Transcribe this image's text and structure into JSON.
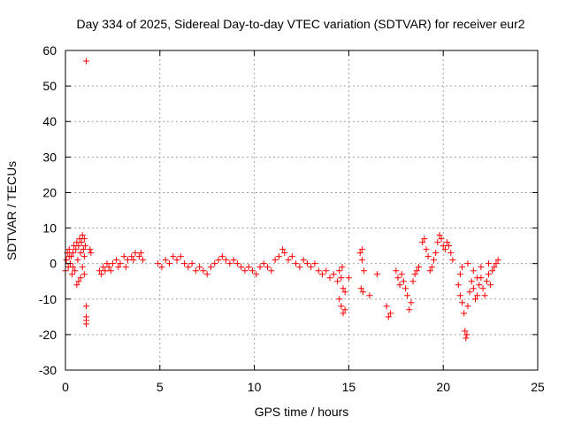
{
  "chart_data": {
    "type": "scatter",
    "title": "Day 334 of 2025, Sidereal Day-to-day VTEC variation (SDTVAR) for receiver eur2",
    "xlabel": "GPS time / hours",
    "ylabel": "SDTVAR / TECUs",
    "xlim": [
      0,
      25
    ],
    "ylim": [
      -30,
      60
    ],
    "xticks": [
      0,
      5,
      10,
      15,
      20,
      25
    ],
    "yticks": [
      -30,
      -20,
      -10,
      0,
      10,
      20,
      30,
      40,
      50,
      60
    ],
    "xtick_labels": [
      "0",
      "5",
      "10",
      "15",
      "20",
      "25"
    ],
    "ytick_labels": [
      "-30",
      "-20",
      "-10",
      "0",
      "10",
      "20",
      "30",
      "40",
      "50",
      "60"
    ],
    "grid": true,
    "marker": "+",
    "color": "#ff0000",
    "series": [
      {
        "name": "SDTVAR",
        "points": [
          [
            0.0,
            -2
          ],
          [
            0.05,
            1
          ],
          [
            0.1,
            3
          ],
          [
            0.15,
            -1
          ],
          [
            0.2,
            4
          ],
          [
            0.25,
            0
          ],
          [
            0.3,
            2
          ],
          [
            0.35,
            -3
          ],
          [
            0.4,
            3
          ],
          [
            0.45,
            5
          ],
          [
            0.5,
            -2
          ],
          [
            0.55,
            4
          ],
          [
            0.6,
            6
          ],
          [
            0.65,
            1
          ],
          [
            0.7,
            -5
          ],
          [
            0.7,
            5
          ],
          [
            0.75,
            7
          ],
          [
            0.8,
            -4
          ],
          [
            0.8,
            3
          ],
          [
            0.85,
            6
          ],
          [
            0.9,
            8
          ],
          [
            0.9,
            -1
          ],
          [
            0.95,
            4
          ],
          [
            1.0,
            7
          ],
          [
            1.0,
            -3
          ],
          [
            1.0,
            2
          ],
          [
            1.05,
            5
          ],
          [
            0.6,
            -6
          ],
          [
            0.4,
            -1
          ],
          [
            0.2,
            2
          ],
          [
            1.1,
            57
          ],
          [
            1.1,
            -12
          ],
          [
            1.1,
            -15
          ],
          [
            1.1,
            -16
          ],
          [
            1.1,
            -17
          ],
          [
            1.3,
            4
          ],
          [
            1.35,
            3
          ],
          [
            1.8,
            -2
          ],
          [
            1.9,
            -3
          ],
          [
            2.0,
            -1
          ],
          [
            2.1,
            -2
          ],
          [
            2.2,
            0
          ],
          [
            2.3,
            -1
          ],
          [
            2.5,
            0
          ],
          [
            2.7,
            1
          ],
          [
            2.9,
            0
          ],
          [
            3.1,
            2
          ],
          [
            3.3,
            1
          ],
          [
            3.5,
            2
          ],
          [
            3.7,
            3
          ],
          [
            3.9,
            2
          ],
          [
            4.0,
            3
          ],
          [
            4.1,
            1
          ],
          [
            3.2,
            -1
          ],
          [
            3.6,
            1
          ],
          [
            2.4,
            -2
          ],
          [
            2.8,
            -1
          ],
          [
            4.9,
            0
          ],
          [
            5.1,
            -1
          ],
          [
            5.3,
            1
          ],
          [
            5.5,
            0
          ],
          [
            5.7,
            2
          ],
          [
            5.9,
            1
          ],
          [
            6.1,
            2
          ],
          [
            6.3,
            0
          ],
          [
            6.5,
            -1
          ],
          [
            6.7,
            0
          ],
          [
            6.9,
            -2
          ],
          [
            7.1,
            -1
          ],
          [
            7.3,
            -2
          ],
          [
            7.5,
            -3
          ],
          [
            7.7,
            -1
          ],
          [
            7.9,
            0
          ],
          [
            8.1,
            1
          ],
          [
            8.3,
            2
          ],
          [
            8.5,
            1
          ],
          [
            8.7,
            0
          ],
          [
            8.9,
            1
          ],
          [
            9.1,
            0
          ],
          [
            9.3,
            -1
          ],
          [
            9.5,
            -2
          ],
          [
            9.7,
            -1
          ],
          [
            9.9,
            -2
          ],
          [
            10.1,
            -3
          ],
          [
            10.3,
            -1
          ],
          [
            10.5,
            0
          ],
          [
            10.7,
            -1
          ],
          [
            10.9,
            -2
          ],
          [
            11.1,
            1
          ],
          [
            11.3,
            2
          ],
          [
            11.5,
            4
          ],
          [
            11.6,
            3
          ],
          [
            11.8,
            1
          ],
          [
            12.0,
            2
          ],
          [
            12.2,
            0
          ],
          [
            12.4,
            -1
          ],
          [
            12.6,
            1
          ],
          [
            12.8,
            0
          ],
          [
            13.0,
            -1
          ],
          [
            13.2,
            0
          ],
          [
            13.4,
            -2
          ],
          [
            13.6,
            -3
          ],
          [
            13.8,
            -2
          ],
          [
            14.0,
            -4
          ],
          [
            14.2,
            -3
          ],
          [
            14.4,
            -5
          ],
          [
            14.5,
            -10
          ],
          [
            14.6,
            -12
          ],
          [
            14.7,
            -14
          ],
          [
            14.8,
            -13
          ],
          [
            14.7,
            -7
          ],
          [
            14.6,
            -4
          ],
          [
            14.5,
            -2
          ],
          [
            14.65,
            -1
          ],
          [
            14.8,
            -8
          ],
          [
            15.0,
            -4
          ],
          [
            15.6,
            3
          ],
          [
            15.7,
            4
          ],
          [
            15.65,
            -7
          ],
          [
            15.75,
            -8
          ],
          [
            15.8,
            -2
          ],
          [
            15.7,
            1
          ],
          [
            16.1,
            -9
          ],
          [
            16.5,
            -3
          ],
          [
            17.0,
            -12
          ],
          [
            17.1,
            -15
          ],
          [
            17.2,
            -14
          ],
          [
            17.5,
            -2
          ],
          [
            17.6,
            -4
          ],
          [
            17.7,
            -6
          ],
          [
            17.8,
            -3
          ],
          [
            17.9,
            -5
          ],
          [
            18.0,
            -7
          ],
          [
            18.1,
            -9
          ],
          [
            18.2,
            -13
          ],
          [
            18.3,
            -11
          ],
          [
            18.4,
            -5
          ],
          [
            18.5,
            -3
          ],
          [
            18.6,
            -2
          ],
          [
            18.7,
            -1
          ],
          [
            18.9,
            6
          ],
          [
            19.0,
            7
          ],
          [
            19.1,
            4
          ],
          [
            19.2,
            2
          ],
          [
            19.3,
            -2
          ],
          [
            19.4,
            -1
          ],
          [
            19.5,
            1
          ],
          [
            19.6,
            3
          ],
          [
            19.7,
            6
          ],
          [
            19.8,
            8
          ],
          [
            19.9,
            7
          ],
          [
            20.0,
            5
          ],
          [
            20.1,
            4
          ],
          [
            20.2,
            6
          ],
          [
            20.3,
            5
          ],
          [
            20.4,
            3
          ],
          [
            20.5,
            1
          ],
          [
            20.8,
            -6
          ],
          [
            20.9,
            -9
          ],
          [
            21.0,
            -11
          ],
          [
            21.1,
            -14
          ],
          [
            21.15,
            -19
          ],
          [
            21.2,
            -21
          ],
          [
            21.25,
            -20
          ],
          [
            21.3,
            -12
          ],
          [
            21.4,
            -8
          ],
          [
            21.5,
            -5
          ],
          [
            21.6,
            -7
          ],
          [
            21.7,
            -10
          ],
          [
            21.8,
            -9
          ],
          [
            21.9,
            -6
          ],
          [
            22.0,
            -4
          ],
          [
            22.1,
            -7
          ],
          [
            22.2,
            -9
          ],
          [
            22.3,
            -5
          ],
          [
            22.4,
            -3
          ],
          [
            22.5,
            -6
          ],
          [
            22.6,
            -2
          ],
          [
            22.7,
            -1
          ],
          [
            22.8,
            0
          ],
          [
            22.9,
            1
          ],
          [
            21.0,
            -1
          ],
          [
            21.3,
            0
          ],
          [
            21.6,
            -2
          ],
          [
            22.0,
            -1
          ],
          [
            22.4,
            0
          ],
          [
            20.9,
            -3
          ],
          [
            21.8,
            -4
          ]
        ]
      }
    ]
  }
}
